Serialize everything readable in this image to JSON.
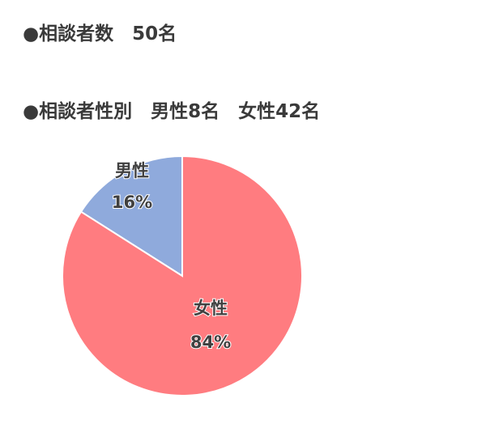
{
  "heading_count": "●相談者数　50名",
  "heading_gender": "●相談者性別　男性8名　女性42名",
  "chart_data": {
    "type": "pie",
    "categories": [
      "男性",
      "女性"
    ],
    "values": [
      8,
      42
    ],
    "percent_labels": [
      "16%",
      "84%"
    ],
    "colors": [
      "#8FAADC",
      "#FF7C80"
    ],
    "legend": "none"
  }
}
